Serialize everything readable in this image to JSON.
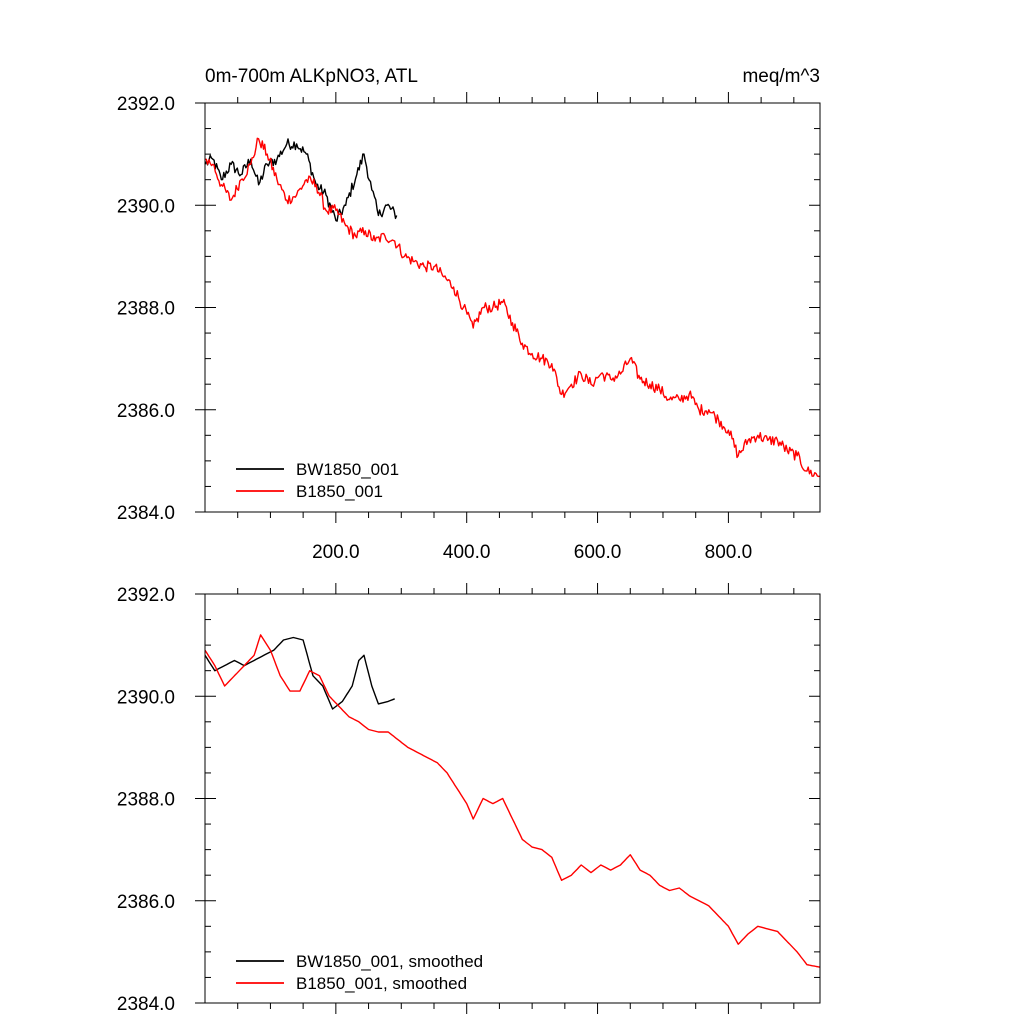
{
  "chart_data": [
    {
      "type": "line",
      "title_left": "0m-700m ALKpNO3, ATL",
      "title_right": "meq/m^3",
      "xlabel": "",
      "ylabel": "",
      "xlim": [
        0,
        940
      ],
      "ylim": [
        2384,
        2392
      ],
      "x_major_ticks": [
        200,
        400,
        600,
        800
      ],
      "x_tick_labels": [
        "200.0",
        "400.0",
        "600.0",
        "800.0"
      ],
      "y_major_ticks": [
        2384,
        2386,
        2388,
        2390,
        2392
      ],
      "y_tick_labels": [
        "2384.0",
        "2386.0",
        "2388.0",
        "2390.0",
        "2392.0"
      ],
      "legend_location": "bottom-left",
      "noisy": true,
      "series": [
        {
          "name": "BW1850_001",
          "color": "#000000",
          "points": [
            [
              0,
              2390.8
            ],
            [
              12,
              2390.9
            ],
            [
              25,
              2390.5
            ],
            [
              40,
              2390.8
            ],
            [
              55,
              2390.6
            ],
            [
              70,
              2390.9
            ],
            [
              82,
              2390.4
            ],
            [
              95,
              2390.8
            ],
            [
              110,
              2390.9
            ],
            [
              125,
              2391.2
            ],
            [
              140,
              2391.2
            ],
            [
              155,
              2391.0
            ],
            [
              170,
              2390.4
            ],
            [
              185,
              2390.2
            ],
            [
              200,
              2389.7
            ],
            [
              215,
              2390.0
            ],
            [
              232,
              2390.6
            ],
            [
              243,
              2391.0
            ],
            [
              255,
              2390.3
            ],
            [
              265,
              2389.8
            ],
            [
              278,
              2390.0
            ],
            [
              293,
              2389.8
            ]
          ]
        },
        {
          "name": "B1850_001",
          "color": "#ff0000",
          "points": [
            [
              0,
              2390.9
            ],
            [
              12,
              2390.8
            ],
            [
              25,
              2390.4
            ],
            [
              40,
              2390.1
            ],
            [
              55,
              2390.5
            ],
            [
              70,
              2390.8
            ],
            [
              82,
              2391.3
            ],
            [
              95,
              2391.0
            ],
            [
              110,
              2390.5
            ],
            [
              125,
              2390.1
            ],
            [
              140,
              2390.2
            ],
            [
              155,
              2390.5
            ],
            [
              170,
              2390.4
            ],
            [
              185,
              2389.9
            ],
            [
              200,
              2389.9
            ],
            [
              215,
              2389.6
            ],
            [
              230,
              2389.4
            ],
            [
              245,
              2389.5
            ],
            [
              260,
              2389.3
            ],
            [
              275,
              2389.4
            ],
            [
              290,
              2389.3
            ],
            [
              305,
              2389.0
            ],
            [
              320,
              2388.9
            ],
            [
              335,
              2388.8
            ],
            [
              350,
              2388.8
            ],
            [
              365,
              2388.6
            ],
            [
              380,
              2388.4
            ],
            [
              395,
              2388.0
            ],
            [
              410,
              2387.6
            ],
            [
              425,
              2388.0
            ],
            [
              440,
              2388.0
            ],
            [
              455,
              2388.1
            ],
            [
              470,
              2387.7
            ],
            [
              485,
              2387.3
            ],
            [
              500,
              2387.1
            ],
            [
              515,
              2387.0
            ],
            [
              530,
              2386.9
            ],
            [
              545,
              2386.3
            ],
            [
              560,
              2386.5
            ],
            [
              575,
              2386.7
            ],
            [
              590,
              2386.5
            ],
            [
              605,
              2386.7
            ],
            [
              620,
              2386.6
            ],
            [
              635,
              2386.7
            ],
            [
              650,
              2387.0
            ],
            [
              665,
              2386.6
            ],
            [
              680,
              2386.5
            ],
            [
              695,
              2386.4
            ],
            [
              710,
              2386.2
            ],
            [
              725,
              2386.2
            ],
            [
              740,
              2386.3
            ],
            [
              755,
              2386.0
            ],
            [
              770,
              2386.0
            ],
            [
              785,
              2385.8
            ],
            [
              800,
              2385.6
            ],
            [
              815,
              2385.1
            ],
            [
              830,
              2385.4
            ],
            [
              845,
              2385.5
            ],
            [
              860,
              2385.4
            ],
            [
              875,
              2385.4
            ],
            [
              890,
              2385.2
            ],
            [
              905,
              2385.1
            ],
            [
              920,
              2384.8
            ],
            [
              940,
              2384.7
            ]
          ]
        }
      ]
    },
    {
      "type": "line",
      "title_left": "",
      "title_right": "",
      "xlabel": "",
      "ylabel": "",
      "xlim": [
        0,
        940
      ],
      "ylim": [
        2384,
        2392
      ],
      "x_major_ticks": [
        200,
        400,
        600,
        800
      ],
      "x_tick_labels": [],
      "y_major_ticks": [
        2384,
        2386,
        2388,
        2390,
        2392
      ],
      "y_tick_labels": [
        "2384.0",
        "2386.0",
        "2388.0",
        "2390.0",
        "2392.0"
      ],
      "legend_location": "bottom-left",
      "noisy": false,
      "series": [
        {
          "name": "BW1850_001, smoothed",
          "color": "#000000",
          "points": [
            [
              0,
              2390.8
            ],
            [
              15,
              2390.5
            ],
            [
              30,
              2390.6
            ],
            [
              45,
              2390.7
            ],
            [
              60,
              2390.6
            ],
            [
              75,
              2390.7
            ],
            [
              90,
              2390.8
            ],
            [
              105,
              2390.9
            ],
            [
              120,
              2391.1
            ],
            [
              135,
              2391.15
            ],
            [
              150,
              2391.1
            ],
            [
              165,
              2390.4
            ],
            [
              180,
              2390.2
            ],
            [
              195,
              2389.75
            ],
            [
              210,
              2389.9
            ],
            [
              225,
              2390.2
            ],
            [
              235,
              2390.7
            ],
            [
              243,
              2390.8
            ],
            [
              255,
              2390.2
            ],
            [
              265,
              2389.85
            ],
            [
              280,
              2389.9
            ],
            [
              290,
              2389.95
            ]
          ]
        },
        {
          "name": "B1850_001, smoothed",
          "color": "#ff0000",
          "points": [
            [
              0,
              2390.9
            ],
            [
              15,
              2390.6
            ],
            [
              30,
              2390.2
            ],
            [
              45,
              2390.4
            ],
            [
              60,
              2390.6
            ],
            [
              75,
              2390.8
            ],
            [
              85,
              2391.2
            ],
            [
              100,
              2390.9
            ],
            [
              115,
              2390.4
            ],
            [
              130,
              2390.1
            ],
            [
              145,
              2390.1
            ],
            [
              160,
              2390.5
            ],
            [
              175,
              2390.4
            ],
            [
              190,
              2390.0
            ],
            [
              205,
              2389.8
            ],
            [
              220,
              2389.6
            ],
            [
              235,
              2389.5
            ],
            [
              250,
              2389.35
            ],
            [
              265,
              2389.3
            ],
            [
              280,
              2389.3
            ],
            [
              295,
              2389.15
            ],
            [
              310,
              2389.0
            ],
            [
              325,
              2388.9
            ],
            [
              340,
              2388.8
            ],
            [
              355,
              2388.7
            ],
            [
              370,
              2388.5
            ],
            [
              385,
              2388.2
            ],
            [
              400,
              2387.9
            ],
            [
              410,
              2387.6
            ],
            [
              425,
              2388.0
            ],
            [
              440,
              2387.9
            ],
            [
              455,
              2388.0
            ],
            [
              470,
              2387.6
            ],
            [
              485,
              2387.2
            ],
            [
              500,
              2387.05
            ],
            [
              515,
              2387.0
            ],
            [
              530,
              2386.85
            ],
            [
              545,
              2386.4
            ],
            [
              560,
              2386.5
            ],
            [
              575,
              2386.7
            ],
            [
              590,
              2386.55
            ],
            [
              605,
              2386.7
            ],
            [
              620,
              2386.6
            ],
            [
              635,
              2386.7
            ],
            [
              650,
              2386.9
            ],
            [
              665,
              2386.6
            ],
            [
              680,
              2386.5
            ],
            [
              695,
              2386.3
            ],
            [
              710,
              2386.2
            ],
            [
              725,
              2386.25
            ],
            [
              740,
              2386.1
            ],
            [
              755,
              2386.0
            ],
            [
              770,
              2385.9
            ],
            [
              785,
              2385.7
            ],
            [
              800,
              2385.5
            ],
            [
              815,
              2385.15
            ],
            [
              830,
              2385.35
            ],
            [
              845,
              2385.5
            ],
            [
              860,
              2385.45
            ],
            [
              875,
              2385.4
            ],
            [
              890,
              2385.2
            ],
            [
              905,
              2385.0
            ],
            [
              920,
              2384.75
            ],
            [
              940,
              2384.7
            ]
          ]
        }
      ]
    }
  ]
}
